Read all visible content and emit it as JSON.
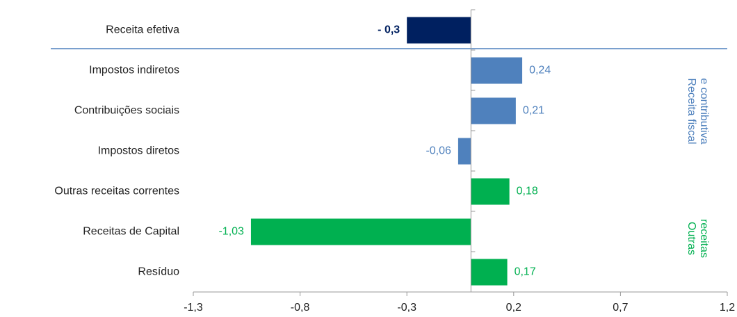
{
  "chart_data": {
    "type": "hbar",
    "categories": [
      "Receita efetiva",
      "Impostos indiretos",
      "Contribuições sociais",
      "Impostos diretos",
      "Outras receitas correntes",
      "Receitas de Capital",
      "Resíduo"
    ],
    "values": [
      -0.3,
      0.24,
      0.21,
      -0.06,
      0.18,
      -1.03,
      0.17
    ],
    "value_labels": [
      "- 0,3",
      "0,24",
      "0,21",
      "-0,06",
      "0,18",
      "-1,03",
      "0,17"
    ],
    "colors": [
      "#002060",
      "#4f81bd",
      "#4f81bd",
      "#4f81bd",
      "#00b050",
      "#00b050",
      "#00b050"
    ],
    "xlim": [
      -1.3,
      1.2
    ],
    "xticks": [
      {
        "value": -1.3,
        "label": "-1,3"
      },
      {
        "value": -0.8,
        "label": "-0,8"
      },
      {
        "value": -0.3,
        "label": "-0,3"
      },
      {
        "value": 0.2,
        "label": "0,2"
      },
      {
        "value": 0.7,
        "label": "0,7"
      },
      {
        "value": 1.2,
        "label": "1,2"
      }
    ],
    "groups": [
      {
        "lines": [
          "Receita fiscal",
          "e contributiva"
        ],
        "color": "#4f81bd"
      },
      {
        "lines": [
          "Outras",
          "receitas"
        ],
        "color": "#00b050"
      }
    ]
  }
}
